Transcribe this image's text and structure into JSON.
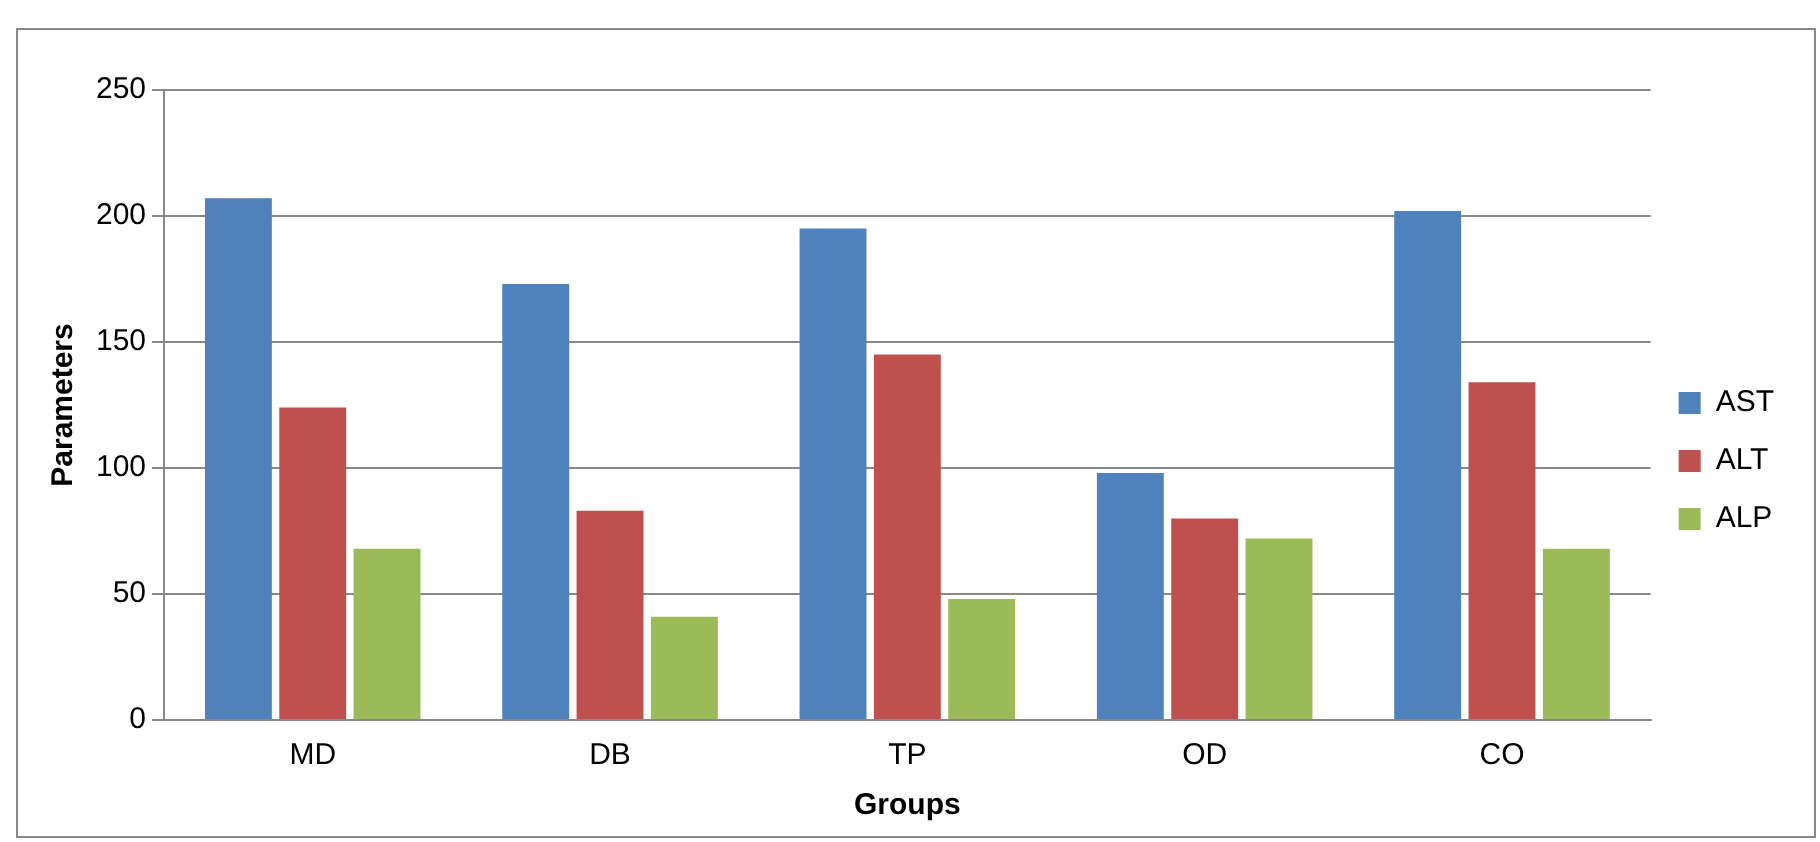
{
  "chart_data": {
    "type": "bar",
    "xlabel": "Groups",
    "ylabel": "Parameters",
    "categories": [
      "MD",
      "DB",
      "TP",
      "OD",
      "CO"
    ],
    "series": [
      {
        "name": "AST",
        "color": "#4f81bd",
        "values": [
          207,
          173,
          195,
          98,
          202
        ]
      },
      {
        "name": "ALT",
        "color": "#c0504d",
        "values": [
          124,
          83,
          145,
          80,
          134
        ]
      },
      {
        "name": "ALP",
        "color": "#9bbb59",
        "values": [
          68,
          41,
          48,
          72,
          68
        ]
      }
    ],
    "ylim": [
      0,
      250
    ],
    "yticks": [
      0,
      50,
      100,
      150,
      200,
      250
    ],
    "grid": "y",
    "legend": "right"
  }
}
